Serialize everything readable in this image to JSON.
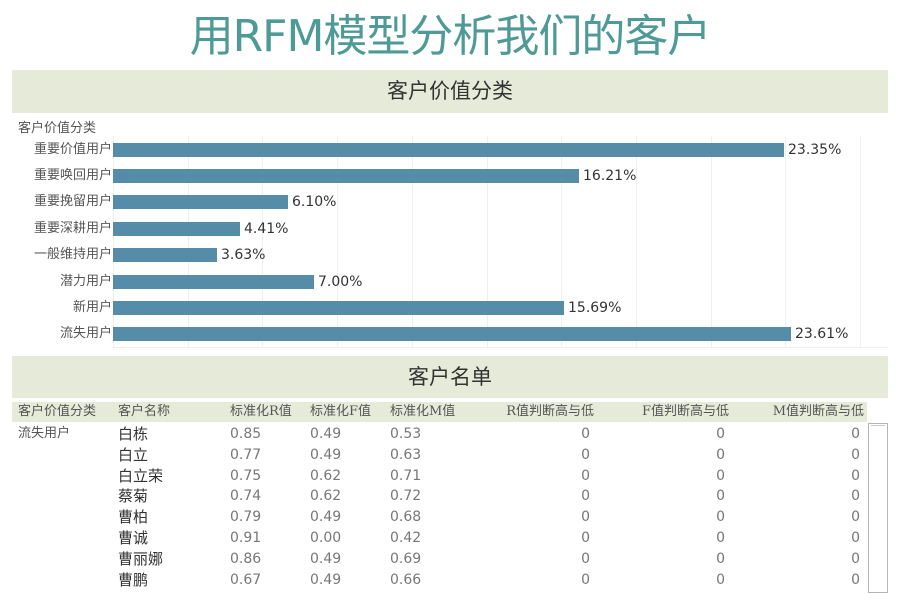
{
  "title": "用RFM模型分析我们的客户",
  "section_chart": {
    "heading": "客户价值分类",
    "axis_title": "客户价值分类"
  },
  "chart_data": {
    "type": "bar",
    "orientation": "horizontal",
    "title": "客户价值分类",
    "ylabel": "客户价值分类",
    "xlabel": "",
    "categories": [
      "重要价值用户",
      "重要唤回用户",
      "重要挽留用户",
      "重要深耕用户",
      "一般维持用户",
      "潜力用户",
      "新用户",
      "流失用户"
    ],
    "values": [
      23.35,
      16.21,
      6.1,
      4.41,
      3.63,
      7.0,
      15.69,
      23.61
    ],
    "value_labels": [
      "23.35%",
      "16.21%",
      "6.10%",
      "4.41%",
      "3.63%",
      "7.00%",
      "15.69%",
      "23.61%"
    ],
    "xlim": [
      0,
      26.97
    ],
    "gridline_step": 2.6,
    "grid": true,
    "legend": "none",
    "bar_color": "#558ca8"
  },
  "section_table": {
    "heading": "客户名单",
    "columns": [
      "客户价值分类",
      "客户名称",
      "标准化R值",
      "标准化F值",
      "标准化M值",
      "R值判断高与低",
      "F值判断高与低",
      "M值判断高与低"
    ],
    "group": "流失用户",
    "rows": [
      {
        "name": "白栋",
        "r": "0.85",
        "f": "0.49",
        "m": "0.53",
        "rj": "0",
        "fj": "0",
        "mj": "0"
      },
      {
        "name": "白立",
        "r": "0.77",
        "f": "0.49",
        "m": "0.63",
        "rj": "0",
        "fj": "0",
        "mj": "0"
      },
      {
        "name": "白立荣",
        "r": "0.75",
        "f": "0.62",
        "m": "0.71",
        "rj": "0",
        "fj": "0",
        "mj": "0"
      },
      {
        "name": "蔡菊",
        "r": "0.74",
        "f": "0.62",
        "m": "0.72",
        "rj": "0",
        "fj": "0",
        "mj": "0"
      },
      {
        "name": "曹柏",
        "r": "0.79",
        "f": "0.49",
        "m": "0.68",
        "rj": "0",
        "fj": "0",
        "mj": "0"
      },
      {
        "name": "曹诚",
        "r": "0.91",
        "f": "0.00",
        "m": "0.42",
        "rj": "0",
        "fj": "0",
        "mj": "0"
      },
      {
        "name": "曹丽娜",
        "r": "0.86",
        "f": "0.49",
        "m": "0.69",
        "rj": "0",
        "fj": "0",
        "mj": "0"
      },
      {
        "name": "曹鹏",
        "r": "0.67",
        "f": "0.49",
        "m": "0.66",
        "rj": "0",
        "fj": "0",
        "mj": "0"
      }
    ]
  },
  "colors": {
    "title": "#4e9a96",
    "band": "#e6ebd9",
    "bar": "#558ca8"
  }
}
